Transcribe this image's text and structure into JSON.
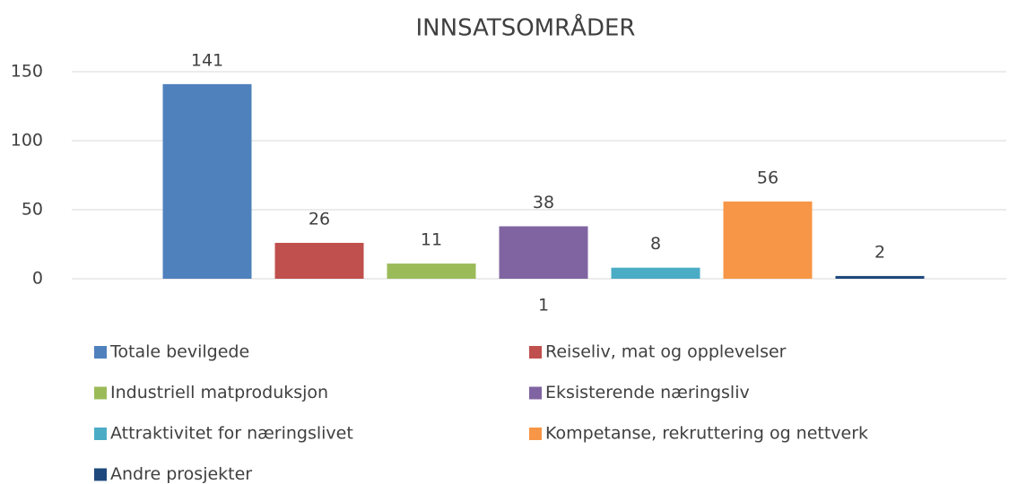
{
  "chart_data": {
    "type": "bar",
    "title": "INNSATSOMRÅDER",
    "categories": [
      "1"
    ],
    "series": [
      {
        "name": "Totale bevilgede",
        "color": "#4f81bd",
        "values": [
          141
        ]
      },
      {
        "name": "Reiseliv, mat og opplevelser",
        "color": "#c0504d",
        "values": [
          26
        ]
      },
      {
        "name": "Industriell matproduksjon",
        "color": "#9bbb59",
        "values": [
          11
        ]
      },
      {
        "name": "Eksisterende næringsliv",
        "color": "#8064a2",
        "values": [
          38
        ]
      },
      {
        "name": "Attraktivitet for næringslivet",
        "color": "#4bacc6",
        "values": [
          8
        ]
      },
      {
        "name": "Kompetanse, rekruttering og nettverk",
        "color": "#f79646",
        "values": [
          56
        ]
      },
      {
        "name": "Andre prosjekter",
        "color": "#1f497d",
        "values": [
          2
        ]
      }
    ],
    "ylim": [
      0,
      150
    ],
    "yticks": [
      0,
      50,
      100,
      150
    ],
    "grid": true,
    "legend": "bottom"
  }
}
